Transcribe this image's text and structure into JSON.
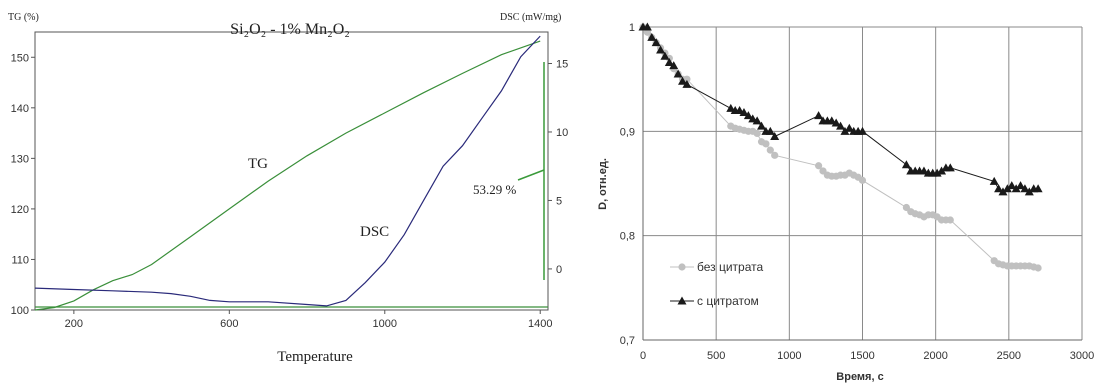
{
  "chart_data": [
    {
      "type": "line",
      "title": "Si₂O₂ - 1% Mn₂O₂",
      "xlabel": "Temperature",
      "ylabel_left": "TG (%)",
      "ylabel_right": "DSC (mW/mg)",
      "x_ticks": [
        "200",
        "600",
        "1000",
        "1400"
      ],
      "xlim": [
        100,
        1420
      ],
      "y_left_ticks": [
        "100",
        "110",
        "120",
        "130",
        "140",
        "150"
      ],
      "ylim_left": [
        100,
        155
      ],
      "y_right_ticks": [
        "0",
        "5",
        "10",
        "15"
      ],
      "ylim_right": [
        -3,
        17.3
      ],
      "annotation": "53.29 %",
      "grid": false,
      "colors": {
        "TG": "#3a8f3a",
        "DSC": "#2a2a7a",
        "marker": "#3a9a3a"
      },
      "series": [
        {
          "name": "TG",
          "axis": "left",
          "x": [
            100,
            150,
            200,
            250,
            300,
            350,
            400,
            500,
            600,
            700,
            800,
            900,
            1000,
            1100,
            1200,
            1300,
            1400
          ],
          "y": [
            100,
            100.5,
            101.8,
            104.0,
            105.8,
            107.0,
            109.0,
            114.5,
            120.0,
            125.5,
            130.5,
            135.0,
            139.0,
            143.0,
            146.8,
            150.5,
            153.2
          ]
        },
        {
          "name": "DSC",
          "axis": "right",
          "x": [
            100,
            200,
            300,
            400,
            450,
            500,
            550,
            600,
            700,
            800,
            850,
            900,
            950,
            1000,
            1050,
            1100,
            1150,
            1200,
            1250,
            1300,
            1350,
            1400
          ],
          "y": [
            -1.4,
            -1.5,
            -1.6,
            -1.7,
            -1.8,
            -2.0,
            -2.3,
            -2.4,
            -2.4,
            -2.6,
            -2.7,
            -2.3,
            -1.0,
            0.5,
            2.5,
            5.0,
            7.5,
            9.0,
            11.0,
            13.0,
            15.5,
            17.0
          ]
        }
      ]
    },
    {
      "type": "line",
      "xlabel": "Время, с",
      "ylabel": "D, отн.ед.",
      "x_ticks": [
        "0",
        "500",
        "1000",
        "1500",
        "2000",
        "2500",
        "3000"
      ],
      "xlim": [
        0,
        3000
      ],
      "y_ticks": [
        "0,7",
        "0,8",
        "0,9",
        "1"
      ],
      "ylim": [
        0.7,
        1.0
      ],
      "grid": true,
      "legend": "left-inside",
      "colors": {
        "без цитрата": "#c0c0c0",
        "с цитратом": "#1a1a1a"
      },
      "series": [
        {
          "name": "без цитрата",
          "marker": "circle",
          "x": [
            0,
            30,
            60,
            90,
            120,
            150,
            180,
            210,
            240,
            270,
            300,
            600,
            630,
            660,
            690,
            720,
            750,
            780,
            810,
            840,
            870,
            900,
            1200,
            1230,
            1260,
            1290,
            1320,
            1350,
            1380,
            1410,
            1440,
            1470,
            1500,
            1800,
            1830,
            1860,
            1890,
            1920,
            1950,
            1980,
            2010,
            2040,
            2070,
            2100,
            2400,
            2430,
            2460,
            2490,
            2520,
            2550,
            2580,
            2610,
            2640,
            2670,
            2700
          ],
          "y": [
            1.0,
            0.995,
            0.99,
            0.985,
            0.98,
            0.975,
            0.97,
            0.96,
            0.955,
            0.95,
            0.95,
            0.905,
            0.903,
            0.902,
            0.901,
            0.9,
            0.9,
            0.898,
            0.89,
            0.888,
            0.882,
            0.877,
            0.867,
            0.862,
            0.858,
            0.857,
            0.857,
            0.858,
            0.858,
            0.86,
            0.858,
            0.856,
            0.853,
            0.827,
            0.823,
            0.821,
            0.82,
            0.818,
            0.82,
            0.82,
            0.818,
            0.815,
            0.815,
            0.815,
            0.776,
            0.773,
            0.772,
            0.771,
            0.771,
            0.771,
            0.771,
            0.771,
            0.771,
            0.77,
            0.769
          ]
        },
        {
          "name": "с цитратом",
          "marker": "triangle",
          "x": [
            0,
            30,
            60,
            90,
            120,
            150,
            180,
            210,
            240,
            270,
            300,
            600,
            630,
            660,
            690,
            720,
            750,
            780,
            810,
            840,
            870,
            900,
            1200,
            1230,
            1260,
            1290,
            1320,
            1350,
            1380,
            1410,
            1440,
            1470,
            1500,
            1800,
            1830,
            1860,
            1890,
            1920,
            1950,
            1980,
            2010,
            2040,
            2070,
            2100,
            2400,
            2430,
            2460,
            2490,
            2520,
            2550,
            2580,
            2610,
            2640,
            2670,
            2700
          ],
          "y": [
            1.0,
            1.0,
            0.99,
            0.985,
            0.978,
            0.972,
            0.966,
            0.963,
            0.955,
            0.948,
            0.945,
            0.922,
            0.92,
            0.92,
            0.918,
            0.915,
            0.912,
            0.91,
            0.905,
            0.9,
            0.9,
            0.895,
            0.915,
            0.91,
            0.91,
            0.91,
            0.908,
            0.905,
            0.9,
            0.903,
            0.9,
            0.9,
            0.9,
            0.868,
            0.862,
            0.862,
            0.862,
            0.862,
            0.86,
            0.86,
            0.86,
            0.862,
            0.865,
            0.865,
            0.852,
            0.845,
            0.842,
            0.845,
            0.848,
            0.845,
            0.848,
            0.845,
            0.842,
            0.845,
            0.845
          ]
        }
      ]
    }
  ]
}
